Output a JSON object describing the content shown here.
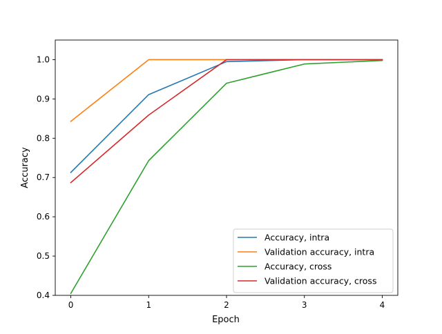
{
  "chart_data": {
    "type": "line",
    "title": "",
    "xlabel": "Epoch",
    "ylabel": "Accuracy",
    "x": [
      0,
      1,
      2,
      3,
      4
    ],
    "xlim": [
      -0.2,
      4.2
    ],
    "ylim": [
      0.4,
      1.05
    ],
    "xticks": [
      "0",
      "1",
      "2",
      "3",
      "4"
    ],
    "yticks": [
      "0.4",
      "0.5",
      "0.6",
      "0.7",
      "0.8",
      "0.9",
      "1.0"
    ],
    "grid": false,
    "legend_position": "lower-right",
    "series": [
      {
        "name": "Accuracy, intra",
        "color": "#1f77b4",
        "values": [
          0.713,
          0.911,
          0.995,
          1.0,
          1.0
        ]
      },
      {
        "name": "Validation accuracy, intra",
        "color": "#ff7f0e",
        "values": [
          0.843,
          1.0,
          1.0,
          1.0,
          1.0
        ]
      },
      {
        "name": "Accuracy, cross",
        "color": "#2ca02c",
        "values": [
          0.405,
          0.743,
          0.94,
          0.989,
          0.998
        ]
      },
      {
        "name": "Validation accuracy, cross",
        "color": "#d62728",
        "values": [
          0.687,
          0.859,
          1.0,
          1.0,
          1.0
        ]
      }
    ]
  }
}
